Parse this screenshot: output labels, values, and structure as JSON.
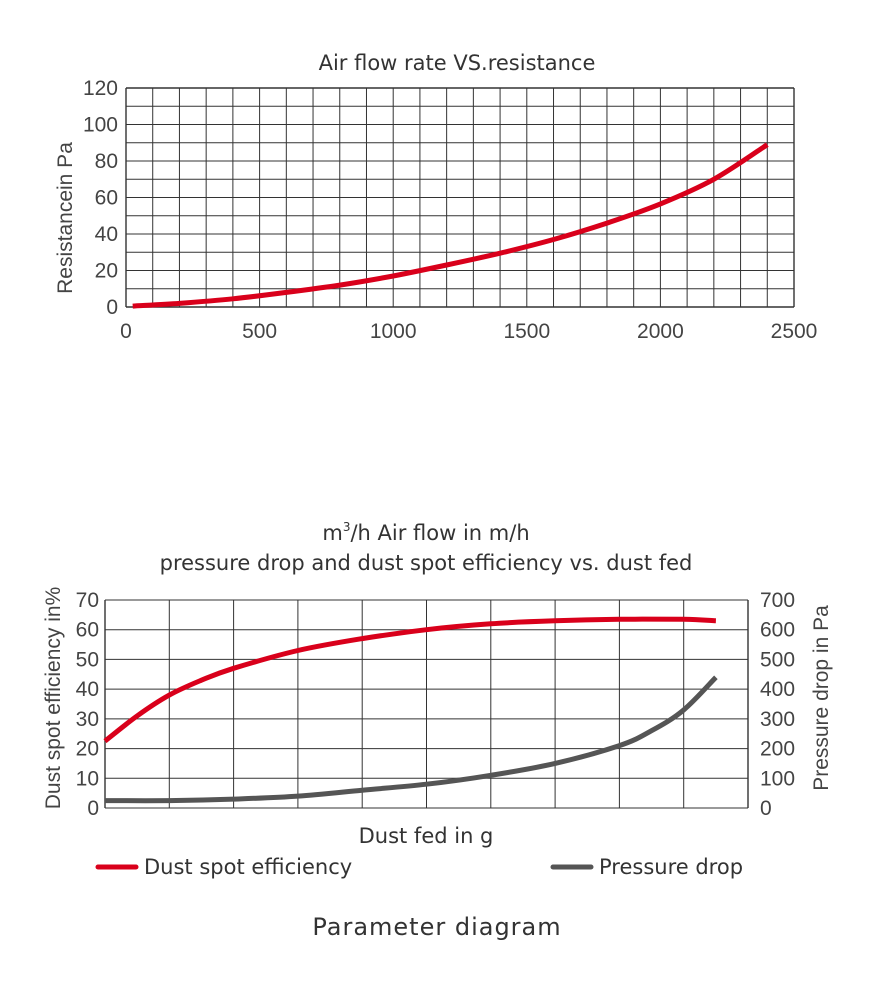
{
  "caption": "Parameter diagram",
  "colors": {
    "red": "#d9001b",
    "dark": "#555555",
    "grid": "#333333"
  },
  "chart_data": [
    {
      "type": "line",
      "title": "Air flow rate VS.resistance",
      "xlabel": "m3/h  Air flow in m/h",
      "xlabel_unit": "m",
      "xlabel_unit_sup": "3",
      "xlabel_rest": "/h  Air flow in m/h",
      "ylabel": "Resistancein Pa",
      "xlim": [
        0,
        2500
      ],
      "ylim": [
        0,
        120
      ],
      "x_ticks": [
        "0",
        "500",
        "1000",
        "1500",
        "2000",
        "2500"
      ],
      "y_ticks": [
        "0",
        "20",
        "40",
        "60",
        "80",
        "100",
        "120"
      ],
      "grid": true,
      "series": [
        {
          "color": "#d9001b",
          "x": [
            25,
            200,
            400,
            600,
            800,
            1000,
            1200,
            1400,
            1600,
            1800,
            2000,
            2200,
            2400
          ],
          "y": [
            0.5,
            2,
            4.5,
            8,
            12,
            17,
            23,
            29.5,
            37,
            46,
            56.5,
            70,
            89
          ]
        }
      ]
    },
    {
      "type": "line",
      "title": "pressure drop and dust spot efficiency vs. dust fed",
      "xlabel": "Dust fed in g",
      "ylabel": "Dust spot efficiency in%",
      "ylabel_right": "Pressure drop in Pa",
      "ylim": [
        0,
        70
      ],
      "ylim_right": [
        0,
        700
      ],
      "y_ticks": [
        "0",
        "10",
        "20",
        "30",
        "40",
        "50",
        "60",
        "70"
      ],
      "y_ticks_right": [
        "0",
        "100",
        "200",
        "300",
        "400",
        "500",
        "600",
        "700"
      ],
      "grid": true,
      "legend_position": "bottom",
      "series": [
        {
          "name": "Dust spot efficiency",
          "color": "#d9001b",
          "axis": "left",
          "x": [
            0,
            0.05,
            0.1,
            0.15,
            0.2,
            0.3,
            0.4,
            0.5,
            0.6,
            0.7,
            0.8,
            0.9,
            0.95
          ],
          "y": [
            22.5,
            31,
            38,
            43,
            47,
            53,
            57,
            60,
            62,
            63,
            63.5,
            63.5,
            63
          ]
        },
        {
          "name": "Pressure drop",
          "color": "#555555",
          "axis": "right",
          "x": [
            0,
            0.1,
            0.2,
            0.3,
            0.4,
            0.5,
            0.6,
            0.7,
            0.8,
            0.85,
            0.9,
            0.95
          ],
          "y": [
            25,
            25,
            30,
            40,
            60,
            80,
            110,
            150,
            210,
            260,
            330,
            440
          ]
        }
      ]
    }
  ]
}
